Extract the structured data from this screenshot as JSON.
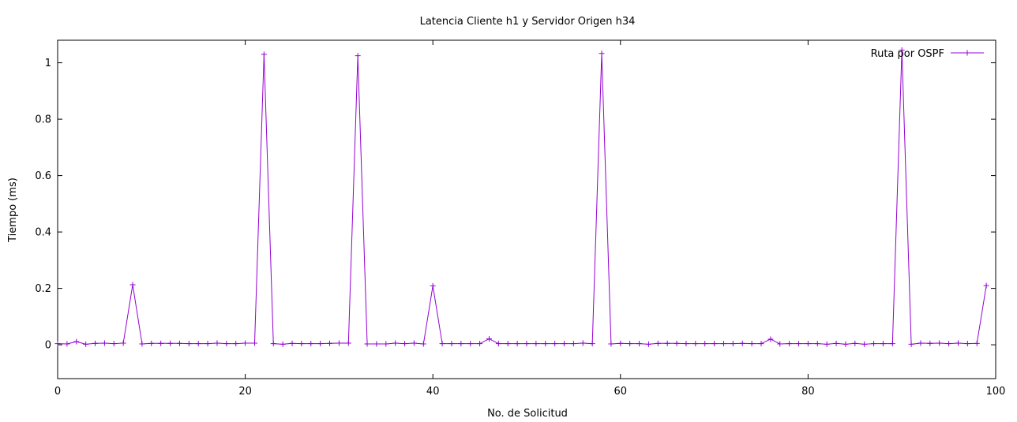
{
  "chart_data": {
    "type": "line",
    "title": "Latencia Cliente h1 y Servidor Origen h34",
    "xlabel": "No. de Solicitud",
    "ylabel": "Tiempo (ms)",
    "xlim": [
      0,
      100
    ],
    "ylim": [
      -0.12,
      1.08
    ],
    "xticks": [
      "0",
      "20",
      "40",
      "60",
      "80",
      "100"
    ],
    "yticks": [
      "0",
      "0.2",
      "0.4",
      "0.6",
      "0.8",
      "1"
    ],
    "grid": false,
    "legend_position": "top-right",
    "series": [
      {
        "name": "Ruta por OSPF",
        "color": "#9400d3",
        "marker": "plus",
        "x": [
          0,
          1,
          2,
          3,
          4,
          5,
          6,
          7,
          8,
          9,
          10,
          11,
          12,
          13,
          14,
          15,
          16,
          17,
          18,
          19,
          20,
          21,
          22,
          23,
          24,
          25,
          26,
          27,
          28,
          29,
          30,
          31,
          32,
          33,
          34,
          35,
          36,
          37,
          38,
          39,
          40,
          41,
          42,
          43,
          44,
          45,
          46,
          47,
          48,
          49,
          50,
          51,
          52,
          53,
          54,
          55,
          56,
          57,
          58,
          59,
          60,
          61,
          62,
          63,
          64,
          65,
          66,
          67,
          68,
          69,
          70,
          71,
          72,
          73,
          74,
          75,
          76,
          77,
          78,
          79,
          80,
          81,
          82,
          83,
          84,
          85,
          86,
          87,
          88,
          89,
          90,
          91,
          92,
          93,
          94,
          95,
          96,
          97,
          98,
          99
        ],
        "y": [
          0.004,
          0.003,
          0.011,
          0.002,
          0.005,
          0.006,
          0.004,
          0.006,
          0.213,
          0.003,
          0.005,
          0.005,
          0.005,
          0.005,
          0.004,
          0.004,
          0.004,
          0.006,
          0.004,
          0.004,
          0.006,
          0.006,
          1.03,
          0.004,
          0.002,
          0.005,
          0.004,
          0.004,
          0.004,
          0.005,
          0.006,
          0.006,
          1.025,
          0.003,
          0.003,
          0.003,
          0.006,
          0.004,
          0.006,
          0.003,
          0.209,
          0.004,
          0.004,
          0.004,
          0.004,
          0.004,
          0.021,
          0.004,
          0.004,
          0.004,
          0.004,
          0.004,
          0.004,
          0.004,
          0.004,
          0.004,
          0.006,
          0.004,
          1.033,
          0.003,
          0.005,
          0.004,
          0.004,
          0.002,
          0.005,
          0.005,
          0.005,
          0.004,
          0.004,
          0.004,
          0.004,
          0.004,
          0.004,
          0.005,
          0.004,
          0.004,
          0.02,
          0.003,
          0.004,
          0.004,
          0.004,
          0.004,
          0.002,
          0.005,
          0.002,
          0.005,
          0.002,
          0.004,
          0.004,
          0.004,
          1.045,
          0.002,
          0.006,
          0.005,
          0.006,
          0.004,
          0.006,
          0.004,
          0.005,
          0.21
        ]
      }
    ]
  }
}
